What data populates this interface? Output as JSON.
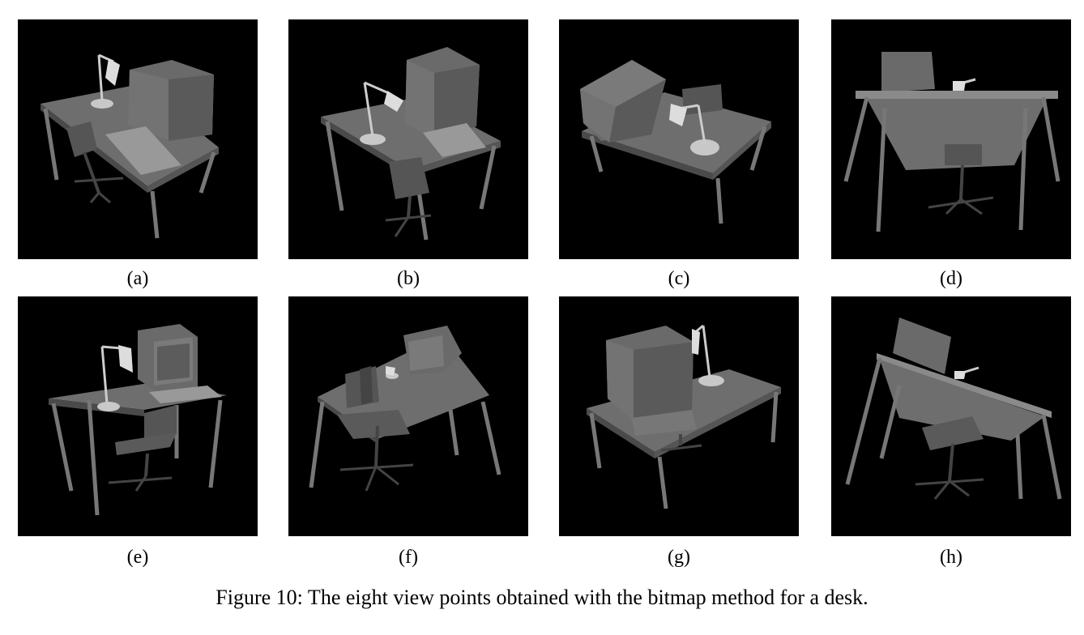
{
  "figure": {
    "panels": [
      {
        "id": "a",
        "label": "(a)",
        "view": "desk-render-view-a"
      },
      {
        "id": "b",
        "label": "(b)",
        "view": "desk-render-view-b"
      },
      {
        "id": "c",
        "label": "(c)",
        "view": "desk-render-view-c"
      },
      {
        "id": "d",
        "label": "(d)",
        "view": "desk-render-view-d"
      },
      {
        "id": "e",
        "label": "(e)",
        "view": "desk-render-view-e"
      },
      {
        "id": "f",
        "label": "(f)",
        "view": "desk-render-view-f"
      },
      {
        "id": "g",
        "label": "(g)",
        "view": "desk-render-view-g"
      },
      {
        "id": "h",
        "label": "(h)",
        "view": "desk-render-view-h"
      }
    ],
    "caption": "Figure 10: The eight view points obtained with the bitmap method for a desk."
  },
  "colors": {
    "background": "#000000",
    "desk": "#6e6e6e",
    "desk_light": "#8a8a8a",
    "desk_dark": "#4a4a4a",
    "lamp": "#c8c8c8"
  }
}
